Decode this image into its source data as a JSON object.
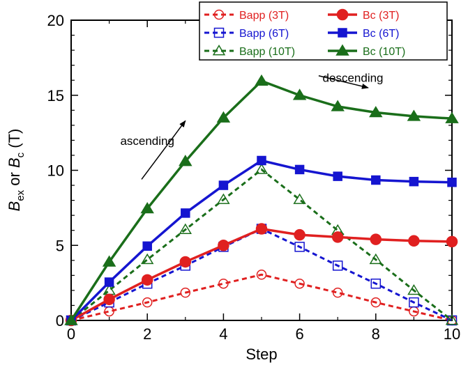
{
  "chart_data": {
    "type": "line",
    "xlabel": "Step",
    "ylabel": {
      "b": "B",
      "sub1": "ex",
      "or": " or ",
      "sub2": "c",
      "unit": " (T)"
    },
    "xlim": [
      0,
      10
    ],
    "ylim": [
      0,
      20
    ],
    "xticks": [
      0,
      2,
      4,
      6,
      8,
      10
    ],
    "yticks": [
      0,
      5,
      10,
      15,
      20
    ],
    "grid": false,
    "legend_position": "top-right",
    "x": [
      0,
      1,
      2,
      3,
      4,
      5,
      6,
      7,
      8,
      9,
      10
    ],
    "series": [
      {
        "name": "Bapp (3T)",
        "color": "#e02020",
        "dash": true,
        "marker": "circle-open",
        "values": [
          0,
          0.6,
          1.2,
          1.85,
          2.45,
          3.05,
          2.45,
          1.85,
          1.2,
          0.6,
          0
        ]
      },
      {
        "name": "Bc (3T)",
        "color": "#e02020",
        "dash": false,
        "marker": "circle-filled",
        "values": [
          0,
          1.4,
          2.7,
          3.9,
          5.0,
          6.1,
          5.7,
          5.55,
          5.4,
          5.3,
          5.25
        ]
      },
      {
        "name": "Bapp (6T)",
        "color": "#1515d0",
        "dash": true,
        "marker": "square-open",
        "values": [
          0,
          1.2,
          2.45,
          3.65,
          4.9,
          6.1,
          4.9,
          3.65,
          2.45,
          1.2,
          0
        ]
      },
      {
        "name": "Bc (6T)",
        "color": "#1515d0",
        "dash": false,
        "marker": "square-filled",
        "values": [
          0,
          2.55,
          4.95,
          7.15,
          9.0,
          10.65,
          10.05,
          9.6,
          9.35,
          9.25,
          9.2
        ]
      },
      {
        "name": "Bapp (10T)",
        "color": "#1a6e1a",
        "dash": true,
        "marker": "triangle-open",
        "values": [
          0,
          2.0,
          4.05,
          6.05,
          8.05,
          10.05,
          8.05,
          6.0,
          4.05,
          2.0,
          0
        ]
      },
      {
        "name": "Bc (10T)",
        "color": "#1a6e1a",
        "dash": false,
        "marker": "triangle-filled",
        "values": [
          0,
          3.9,
          7.45,
          10.6,
          13.5,
          15.95,
          15.0,
          14.25,
          13.85,
          13.6,
          13.45
        ]
      }
    ],
    "annotations": {
      "ascending": {
        "label": "ascending",
        "x": 2.0,
        "y": 11.7,
        "arrow_from": [
          1.85,
          9.4
        ],
        "arrow_to": [
          3.0,
          13.3
        ]
      },
      "descending": {
        "label": "descending",
        "x": 7.4,
        "y": 15.9,
        "arrow_from": [
          6.5,
          16.3
        ],
        "arrow_to": [
          7.8,
          15.5
        ]
      }
    }
  }
}
